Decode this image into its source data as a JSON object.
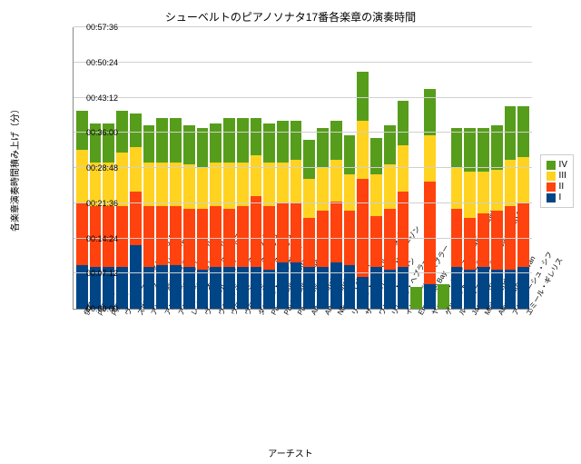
{
  "chart": {
    "type": "stacked-bar",
    "title": "シューベルトのピアノソナタ17番各楽章の演奏時間",
    "title_fontsize": 12,
    "xlabel": "アーチスト",
    "ylabel": "各楽章演奏時間積み上げ（分）",
    "label_fontsize": 10,
    "background_color": "#ffffff",
    "grid_color": "#d0d0d0",
    "axis_color": "#888888",
    "y_min_minutes": 0,
    "y_max_minutes": 57.6,
    "y_ticks": [
      {
        "minutes": 0.0,
        "label": "00:00:00"
      },
      {
        "minutes": 7.2,
        "label": "00:07:12"
      },
      {
        "minutes": 14.4,
        "label": "00:14:24"
      },
      {
        "minutes": 21.6,
        "label": "00:21:36"
      },
      {
        "minutes": 28.8,
        "label": "00:28:48"
      },
      {
        "minutes": 36.0,
        "label": "00:36:00"
      },
      {
        "minutes": 43.2,
        "label": "00:43:12"
      },
      {
        "minutes": 50.4,
        "label": "00:50:24"
      },
      {
        "minutes": 57.6,
        "label": "00:57:36"
      }
    ],
    "series": [
      {
        "key": "I",
        "label": "I",
        "color": "#004586"
      },
      {
        "key": "II",
        "label": "II",
        "color": "#ff420e"
      },
      {
        "key": "III",
        "label": "III",
        "color": "#ffd320"
      },
      {
        "key": "IV",
        "label": "IV",
        "color": "#579d1c"
      }
    ],
    "legend_position": "right",
    "tick_fontsize": 9,
    "xtick_rotation_deg": -60,
    "artists": [
      {
        "name": "伊藤恵",
        "I": 9.0,
        "II": 12.5,
        "III": 11.0,
        "IV": 8.0
      },
      {
        "name": "内田光子",
        "I": 8.5,
        "II": 12.5,
        "III": 9.0,
        "IV": 8.0
      },
      {
        "name": "内田光子",
        "I": 8.5,
        "II": 12.5,
        "III": 9.0,
        "IV": 8.0
      },
      {
        "name": "ヴァレリー・アファナシエフ",
        "I": 8.5,
        "II": 12.5,
        "III": 11.0,
        "IV": 8.5
      },
      {
        "name": "スヴャトスラフ・リヒテル",
        "I": 13.0,
        "II": 11.0,
        "III": 9.0,
        "IV": 7.0
      },
      {
        "name": "アリス＝紗良・オット",
        "I": 8.5,
        "II": 12.5,
        "III": 9.0,
        "IV": 7.5
      },
      {
        "name": "アルフレッド・ブレンデル",
        "I": 9.0,
        "II": 12.0,
        "III": 9.0,
        "IV": 9.0
      },
      {
        "name": "アルフレッド・ブレンデル",
        "I": 9.0,
        "II": 12.0,
        "III": 9.0,
        "IV": 9.0
      },
      {
        "name": "レイフ・オヴェ・アンスネス",
        "I": 8.5,
        "II": 12.0,
        "III": 9.0,
        "IV": 8.0
      },
      {
        "name": "ヴィルヘルム・ケンプ",
        "I": 8.0,
        "II": 12.5,
        "III": 8.5,
        "IV": 8.0
      },
      {
        "name": "ウラディミール・アシュケナージ",
        "I": 8.5,
        "II": 12.5,
        "III": 9.0,
        "IV": 8.0
      },
      {
        "name": "ウラディミール・アシュケナージ",
        "I": 8.5,
        "II": 12.0,
        "III": 9.5,
        "IV": 9.0
      },
      {
        "name": "ウラディミール・アシュケナージ",
        "I": 8.5,
        "II": 12.5,
        "III": 9.0,
        "IV": 9.0
      },
      {
        "name": "ダニエル・バレンボイム",
        "I": 8.5,
        "II": 14.5,
        "III": 8.5,
        "IV": 7.5
      },
      {
        "name": "Paul Badura-Skoda",
        "I": 8.0,
        "II": 13.0,
        "III": 9.0,
        "IV": 8.0
      },
      {
        "name": "Paul Badura-Skoda",
        "I": 9.5,
        "II": 12.0,
        "III": 8.5,
        "IV": 8.5
      },
      {
        "name": "Paul Lewis",
        "I": 9.5,
        "II": 12.0,
        "III": 9.0,
        "IV": 8.0
      },
      {
        "name": "Artur Schnabel",
        "I": 8.5,
        "II": 10.0,
        "III": 8.0,
        "IV": 8.0
      },
      {
        "name": "Artur Schnabel",
        "I": 8.5,
        "II": 11.5,
        "III": 9.0,
        "IV": 8.0
      },
      {
        "name": "Nikolaus Lahusen",
        "I": 9.5,
        "II": 12.5,
        "III": 8.5,
        "IV": 8.0
      },
      {
        "name": "リーリャ・ジルベルシュタイン",
        "I": 9.0,
        "II": 11.0,
        "III": 7.5,
        "IV": 8.0
      },
      {
        "name": "サー・クリフォード・カーゾン",
        "I": 6.5,
        "II": 20.0,
        "III": 12.0,
        "IV": 10.0
      },
      {
        "name": "ワルター・クリーン",
        "I": 8.5,
        "II": 10.5,
        "III": 8.5,
        "IV": 7.5
      },
      {
        "name": "リヒテル・ヘブラー",
        "I": 8.0,
        "II": 12.5,
        "III": 9.0,
        "IV": 8.0
      },
      {
        "name": "イングリッド・ヘブラー",
        "I": 8.5,
        "II": 15.5,
        "III": 9.5,
        "IV": 9.0
      },
      {
        "name": "Emmanuel Bay",
        "I": 0.0,
        "II": 0.0,
        "III": 0.0,
        "IV": 4.5
      },
      {
        "name": "ヤッシャ・ハイフェッツ&Emmanuel Bay",
        "I": 5.0,
        "II": 21.0,
        "III": 9.5,
        "IV": 9.5
      },
      {
        "name": "ゲルハルト・オピッツ",
        "I": 0.0,
        "II": 0.0,
        "III": 0.0,
        "IV": 5.0
      },
      {
        "name": "ルッジェーロ・リッチ&Gianfranco Ricci",
        "I": 8.5,
        "II": 12.0,
        "III": 8.5,
        "IV": 8.0
      },
      {
        "name": "Jacques Ricci",
        "I": 8.0,
        "II": 10.5,
        "III": 9.5,
        "IV": 9.0
      },
      {
        "name": "Michael Endres",
        "I": 8.5,
        "II": 11.0,
        "III": 8.5,
        "IV": 9.0
      },
      {
        "name": "Alessandro Deljavan",
        "I": 8.0,
        "II": 12.0,
        "III": 8.5,
        "IV": 9.0
      },
      {
        "name": "アンドラーシュ・シフ",
        "I": 8.0,
        "II": 13.0,
        "III": 9.5,
        "IV": 11.0
      },
      {
        "name": "エミール・ギレリス",
        "I": 8.5,
        "II": 13.0,
        "III": 9.5,
        "IV": 10.5
      }
    ]
  }
}
